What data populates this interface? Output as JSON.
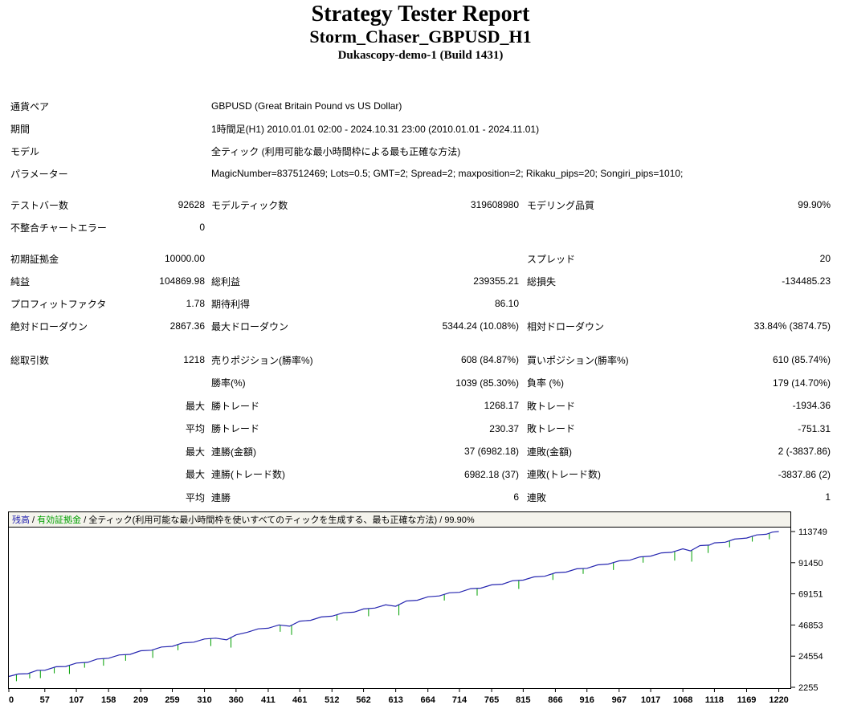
{
  "header": {
    "title": "Strategy Tester Report",
    "subtitle": "Storm_Chaser_GBPUSD_H1",
    "build": "Dukascopy-demo-1 (Build 1431)"
  },
  "info": [
    {
      "label": "通貨ペア",
      "value": "GBPUSD (Great Britain Pound vs US Dollar)"
    },
    {
      "label": "期間",
      "value": "1時間足(H1) 2010.01.01 02:00 - 2024.10.31 23:00 (2010.01.01 - 2024.11.01)"
    },
    {
      "label": "モデル",
      "value": "全ティック (利用可能な最小時間枠による最も正確な方法)"
    },
    {
      "label": "パラメーター",
      "value": "MagicNumber=837512469; Lots=0.5; GMT=2; Spread=2; maxposition=2; Rikaku_pips=20; Songiri_pips=1010;"
    }
  ],
  "rows": [
    {
      "l1": "テストバー数",
      "v1": "92628",
      "l2": "モデルティック数",
      "v2": "319608980",
      "l3": "モデリング品質",
      "v3": "99.90%"
    },
    {
      "l1": "不整合チャートエラー",
      "v1": "0",
      "l2": "",
      "v2": "",
      "l3": "",
      "v3": ""
    },
    {
      "l1": "初期証拠金",
      "v1": "10000.00",
      "l2": "",
      "v2": "",
      "l3": "スプレッド",
      "v3": "20"
    },
    {
      "l1": "純益",
      "v1": "104869.98",
      "l2": "総利益",
      "v2": "239355.21",
      "l3": "総損失",
      "v3": "-134485.23"
    },
    {
      "l1": "プロフィットファクタ",
      "v1": "1.78",
      "l2": "期待利得",
      "v2": "86.10",
      "l3": "",
      "v3": ""
    },
    {
      "l1": "絶対ドローダウン",
      "v1": "2867.36",
      "l2": "最大ドローダウン",
      "v2": "5344.24 (10.08%)",
      "l3": "相対ドローダウン",
      "v3": "33.84% (3874.75)"
    },
    {
      "l1": "総取引数",
      "v1": "1218",
      "l2": "売りポジション(勝率%)",
      "v2": "608 (84.87%)",
      "l3": "買いポジション(勝率%)",
      "v3": "610 (85.74%)"
    },
    {
      "l1": "",
      "v1": "",
      "l2": "勝率(%)",
      "v2": "1039 (85.30%)",
      "l3": "負率 (%)",
      "v3": "179 (14.70%)"
    },
    {
      "l1": "",
      "v1": "最大",
      "l2": "勝トレード",
      "v2": "1268.17",
      "l3": "敗トレード",
      "v3": "-1934.36"
    },
    {
      "l1": "",
      "v1": "平均",
      "l2": "勝トレード",
      "v2": "230.37",
      "l3": "敗トレード",
      "v3": "-751.31"
    },
    {
      "l1": "",
      "v1": "最大",
      "l2": "連勝(金額)",
      "v2": "37 (6982.18)",
      "l3": "連敗(金額)",
      "v3": "2 (-3837.86)"
    },
    {
      "l1": "",
      "v1": "最大",
      "l2": "連勝(トレード数)",
      "v2": "6982.18 (37)",
      "l3": "連敗(トレード数)",
      "v3": "-3837.86 (2)"
    },
    {
      "l1": "",
      "v1": "平均",
      "l2": "連勝",
      "v2": "6",
      "l3": "連敗",
      "v3": "1"
    }
  ],
  "chart_data": {
    "type": "line",
    "title": "",
    "xlabel": "",
    "ylabel": "",
    "legend": {
      "balance_label": "残高",
      "equity_label": "有効証拠金",
      "separator": " / ",
      "model_label": "全ティック(利用可能な最小時間枠を使いすべてのティックを生成する、最も正確な方法)",
      "quality": "99.90%"
    },
    "x_ticks": [
      0,
      57,
      107,
      158,
      209,
      259,
      310,
      360,
      411,
      461,
      512,
      562,
      613,
      664,
      714,
      765,
      815,
      866,
      916,
      967,
      1017,
      1068,
      1118,
      1169,
      1220
    ],
    "y_ticks": [
      113749,
      91450,
      69151,
      46853,
      24554,
      2255
    ],
    "xlim": [
      0,
      1232
    ],
    "ylim": [
      2255,
      113749
    ],
    "grid": false,
    "legend_position": "top",
    "colors": {
      "balance": "#2626b0",
      "equity": "#00a000",
      "legend_bg": "#f4f3ec",
      "border": "#000000"
    },
    "series": [
      {
        "name": "残高",
        "points": [
          [
            0,
            10000
          ],
          [
            15,
            11800
          ],
          [
            30,
            12050
          ],
          [
            45,
            14430
          ],
          [
            57,
            14450
          ],
          [
            75,
            16980
          ],
          [
            90,
            17160
          ],
          [
            107,
            19600
          ],
          [
            125,
            20140
          ],
          [
            140,
            22510
          ],
          [
            158,
            23050
          ],
          [
            175,
            25390
          ],
          [
            192,
            25840
          ],
          [
            209,
            28390
          ],
          [
            226,
            28830
          ],
          [
            242,
            31090
          ],
          [
            259,
            31540
          ],
          [
            276,
            34090
          ],
          [
            293,
            34530
          ],
          [
            310,
            36880
          ],
          [
            328,
            37410
          ],
          [
            345,
            36200
          ],
          [
            360,
            39800
          ],
          [
            378,
            41670
          ],
          [
            395,
            44120
          ],
          [
            411,
            44580
          ],
          [
            428,
            46920
          ],
          [
            445,
            45970
          ],
          [
            461,
            49630
          ],
          [
            478,
            50180
          ],
          [
            495,
            52620
          ],
          [
            512,
            53170
          ],
          [
            530,
            55600
          ],
          [
            547,
            56050
          ],
          [
            562,
            58330
          ],
          [
            580,
            58960
          ],
          [
            597,
            61300
          ],
          [
            613,
            60270
          ],
          [
            630,
            64010
          ],
          [
            647,
            64560
          ],
          [
            664,
            67010
          ],
          [
            682,
            67640
          ],
          [
            698,
            69900
          ],
          [
            714,
            70260
          ],
          [
            732,
            72890
          ],
          [
            748,
            73250
          ],
          [
            765,
            75600
          ],
          [
            782,
            76050
          ],
          [
            798,
            78510
          ],
          [
            815,
            78960
          ],
          [
            832,
            81300
          ],
          [
            849,
            81750
          ],
          [
            866,
            84200
          ],
          [
            883,
            84740
          ],
          [
            900,
            87090
          ],
          [
            916,
            87450
          ],
          [
            933,
            89900
          ],
          [
            950,
            90445
          ],
          [
            967,
            92790
          ],
          [
            984,
            93240
          ],
          [
            1000,
            95600
          ],
          [
            1017,
            96150
          ],
          [
            1034,
            98490
          ],
          [
            1050,
            98860
          ],
          [
            1068,
            101390
          ],
          [
            1080,
            99910
          ],
          [
            1095,
            103680
          ],
          [
            1110,
            104060
          ],
          [
            1118,
            105640
          ],
          [
            1135,
            106090
          ],
          [
            1150,
            108370
          ],
          [
            1169,
            109080
          ],
          [
            1185,
            111340
          ],
          [
            1200,
            111820
          ],
          [
            1210,
            113370
          ],
          [
            1220,
            113749
          ]
        ]
      }
    ],
    "equity_dips": [
      [
        12,
        4800
      ],
      [
        33,
        3900
      ],
      [
        50,
        5600
      ],
      [
        72,
        4300
      ],
      [
        96,
        6200
      ],
      [
        120,
        3700
      ],
      [
        150,
        5100
      ],
      [
        185,
        4400
      ],
      [
        228,
        5800
      ],
      [
        268,
        4100
      ],
      [
        320,
        5400
      ],
      [
        352,
        7200
      ],
      [
        430,
        4800
      ],
      [
        448,
        6900
      ],
      [
        520,
        4200
      ],
      [
        570,
        5500
      ],
      [
        618,
        7600
      ],
      [
        690,
        4400
      ],
      [
        742,
        5200
      ],
      [
        808,
        6100
      ],
      [
        862,
        4500
      ],
      [
        910,
        3900
      ],
      [
        958,
        5300
      ],
      [
        1005,
        4300
      ],
      [
        1055,
        6600
      ],
      [
        1082,
        8200
      ],
      [
        1108,
        5600
      ],
      [
        1142,
        4700
      ],
      [
        1178,
        3800
      ],
      [
        1205,
        4400
      ]
    ]
  }
}
